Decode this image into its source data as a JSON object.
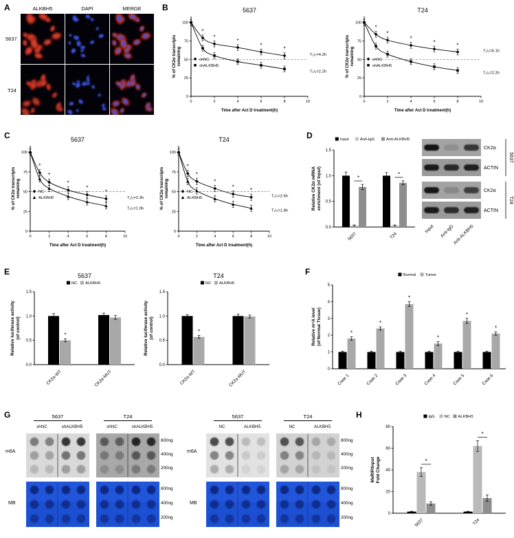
{
  "labels": {
    "A": "A",
    "B": "B",
    "C": "C",
    "D": "D",
    "E": "E",
    "F": "F",
    "G": "G",
    "H": "H"
  },
  "colors": {
    "black": "#000000",
    "gray_light": "#b9b9b9",
    "gray_mid": "#8e8e8e",
    "mb_blue": "#1c4fd2",
    "fluor_red": "#d23028",
    "fluor_blue": "#3d55e0"
  },
  "panelA": {
    "col_headers": [
      "ALKBH5",
      "DAPI",
      "MERGE"
    ],
    "row_labels": [
      "5637",
      "T24"
    ]
  },
  "panelD": {
    "lane_labels": [
      "Input",
      "Anti-IgG",
      "Anti-ALKBH5"
    ],
    "gel_targets": [
      "CK2α",
      "ACTIN",
      "CK2α",
      "ACTIN"
    ],
    "cell_labels": [
      "5637",
      "T24"
    ],
    "band_intensities": [
      [
        0.95,
        0.12,
        0.72
      ],
      [
        0.9,
        0.8,
        0.88
      ],
      [
        0.92,
        0.18,
        0.68
      ],
      [
        0.9,
        0.78,
        0.86
      ]
    ]
  },
  "panelG": {
    "left_headers": [
      "5637",
      "T24"
    ],
    "right_headers": [
      "5637",
      "T24"
    ],
    "left_col_labels": [
      "shNC",
      "shALKBH5",
      "shNC",
      "shALKBH5"
    ],
    "right_col_labels": [
      "NC",
      "ALKBH5",
      "NC",
      "ALKBH5"
    ],
    "row_labels": [
      "m6A",
      "MB"
    ],
    "amounts": [
      "800ng",
      "400ng",
      "200ng"
    ],
    "m6a_backgrounds": [
      "#d9d9d9",
      "#a8a8a8",
      "#e2e2e2",
      "#d2d2d2"
    ],
    "m6a_col_intensities": [
      [
        0.45,
        0.42,
        0.8,
        0.78
      ],
      [
        0.5,
        0.48,
        0.85,
        0.82
      ],
      [
        0.7,
        0.68,
        0.18,
        0.16
      ],
      [
        0.65,
        0.62,
        0.22,
        0.2
      ]
    ],
    "m6a_row_scale": [
      1,
      0.62,
      0.36
    ],
    "mb_row_opacity": [
      0.95,
      0.8,
      0.65
    ]
  },
  "chart_data": [
    {
      "id": "B1",
      "type": "decay",
      "title": "5637",
      "xlabel": "Time after Act D treatment(h)",
      "ylabel_lines": [
        "% of CK2α transcripts",
        "remaining"
      ],
      "xlim": [
        0,
        10
      ],
      "ylim": [
        0,
        108
      ],
      "xticks": [
        0,
        2,
        4,
        6,
        8,
        10
      ],
      "yticks": [
        0,
        25,
        50,
        75,
        100
      ],
      "dashed_y": 50,
      "x": [
        0,
        1,
        2,
        4,
        6,
        8
      ],
      "err": 4,
      "stars_x": [
        1,
        2,
        4,
        6,
        8
      ],
      "series": [
        {
          "name": "shNC",
          "marker": "diamond",
          "values": [
            100,
            79,
            71,
            66,
            60,
            55
          ],
          "halflife": "T₁/₂=4.2h"
        },
        {
          "name": "shALKBH5",
          "marker": "square",
          "values": [
            100,
            65,
            55,
            47,
            42,
            37
          ],
          "halflife": "T₁/₂=2.2h"
        }
      ]
    },
    {
      "id": "B2",
      "type": "decay",
      "title": "T24",
      "xlabel": "Time after Act D treatment(h)",
      "ylabel_lines": [
        "% of CK2α transcripts",
        "remaining"
      ],
      "xlim": [
        0,
        10
      ],
      "ylim": [
        0,
        108
      ],
      "xticks": [
        0,
        2,
        4,
        6,
        8,
        10
      ],
      "yticks": [
        0,
        25,
        50,
        75,
        100
      ],
      "dashed_y": 50,
      "x": [
        0,
        1,
        2,
        4,
        6,
        8
      ],
      "err": 4,
      "stars_x": [
        1,
        2,
        4,
        6,
        8
      ],
      "series": [
        {
          "name": "shNC",
          "marker": "diamond",
          "values": [
            100,
            84,
            76,
            69,
            64,
            60
          ],
          "halflife": "T₁/₂=6.1h"
        },
        {
          "name": "shALKBH5",
          "marker": "square",
          "values": [
            100,
            68,
            57,
            47,
            40,
            35
          ],
          "halflife": "T₁/₂=2.2h"
        }
      ]
    },
    {
      "id": "C1",
      "type": "decay",
      "title": "5637",
      "xlabel": "Time after Act D treatment(h)",
      "ylabel_lines": [
        "% of CK2α transcripts",
        "remaining"
      ],
      "xlim": [
        0,
        10
      ],
      "ylim": [
        0,
        108
      ],
      "xticks": [
        0,
        2,
        4,
        6,
        8,
        10
      ],
      "yticks": [
        0,
        25,
        50,
        75,
        100
      ],
      "dashed_y": 50,
      "x": [
        0,
        1,
        2,
        4,
        6,
        8
      ],
      "err": 4,
      "stars_x": [
        1,
        2,
        4,
        6,
        8
      ],
      "series": [
        {
          "name": "NC",
          "marker": "diamond",
          "values": [
            100,
            74,
            62,
            52,
            46,
            41
          ],
          "halflife": "T₁/₂=2.3h"
        },
        {
          "name": "ALKBH5",
          "marker": "triangle",
          "values": [
            100,
            66,
            54,
            44,
            37,
            32
          ],
          "halflife": "T₁/₂=1.9h"
        }
      ]
    },
    {
      "id": "C2",
      "type": "decay",
      "title": "T24",
      "xlabel": "Time after Act D treatment(h)",
      "ylabel_lines": [
        "% of CK2α transcripts",
        "remaining"
      ],
      "xlim": [
        0,
        10
      ],
      "ylim": [
        0,
        108
      ],
      "xticks": [
        0,
        2,
        4,
        6,
        8,
        10
      ],
      "yticks": [
        0,
        25,
        50,
        75,
        100
      ],
      "dashed_y": 50,
      "x": [
        0,
        1,
        2,
        4,
        6,
        8
      ],
      "err": 4,
      "stars_x": [
        1,
        2,
        4,
        6,
        8
      ],
      "series": [
        {
          "name": "NC",
          "marker": "diamond",
          "values": [
            100,
            73,
            63,
            54,
            47,
            43
          ],
          "halflife": "T₁/₂=2.6h"
        },
        {
          "name": "ALKBH5",
          "marker": "triangle",
          "values": [
            100,
            63,
            51,
            41,
            34,
            29
          ],
          "halflife": "T₁/₂=1.8h"
        }
      ]
    },
    {
      "id": "D",
      "type": "bar",
      "ylabel_lines": [
        "Relative CK2α mRNA",
        "enrichment (of Input)"
      ],
      "ylim": [
        0,
        1.5
      ],
      "yticks": [
        0,
        0.5,
        1,
        1.5
      ],
      "tickfmt": 1,
      "categories": [
        "5637",
        "T24"
      ],
      "rotate_xticks": true,
      "legend": "top",
      "series": [
        {
          "name": "Input",
          "color": "#000000",
          "values": [
            1.0,
            1.0
          ],
          "errs": [
            0.07,
            0.06
          ]
        },
        {
          "name": "Anti-IgG",
          "color": "#c2c2c2",
          "values": [
            0.03,
            0.03
          ],
          "errs": [
            0.01,
            0.01
          ]
        },
        {
          "name": "Anti-ALKBH5",
          "color": "#8e8e8e",
          "values": [
            0.78,
            0.86
          ],
          "errs": [
            0.05,
            0.04
          ]
        }
      ],
      "brackets": [
        {
          "cat": 0,
          "s1": 1,
          "s2": 2
        },
        {
          "cat": 1,
          "s1": 1,
          "s2": 2
        }
      ]
    },
    {
      "id": "E1",
      "type": "bar",
      "title": "5637",
      "ylabel_lines": [
        "Relative luciferase activity",
        "(of control)"
      ],
      "ylim": [
        0,
        1.5
      ],
      "yticks": [
        0,
        0.5,
        1,
        1.5
      ],
      "tickfmt": 1,
      "categories": [
        "CK2α-WT",
        "CK2α-MUT"
      ],
      "rotate_xticks": true,
      "legend": "top",
      "series": [
        {
          "name": "NC",
          "color": "#000000",
          "values": [
            1.0,
            1.02
          ],
          "errs": [
            0.05,
            0.04
          ]
        },
        {
          "name": "ALKBH5",
          "color": "#a8a8a8",
          "values": [
            0.5,
            0.97
          ],
          "errs": [
            0.03,
            0.04
          ]
        }
      ],
      "stars": [
        {
          "cat": 0,
          "series": 1
        }
      ]
    },
    {
      "id": "E2",
      "type": "bar",
      "title": "T24",
      "ylabel_lines": [
        "Relative luciferase activity",
        "(of control)"
      ],
      "ylim": [
        0,
        1.5
      ],
      "yticks": [
        0,
        0.5,
        1,
        1.5
      ],
      "tickfmt": 1,
      "categories": [
        "CK2α-WT",
        "CK2α-MUT"
      ],
      "rotate_xticks": true,
      "legend": "top",
      "series": [
        {
          "name": "NC",
          "color": "#000000",
          "values": [
            1.0,
            1.0
          ],
          "errs": [
            0.03,
            0.04
          ]
        },
        {
          "name": "ALKBH5",
          "color": "#a8a8a8",
          "values": [
            0.57,
            0.99
          ],
          "errs": [
            0.03,
            0.03
          ]
        }
      ],
      "stars": [
        {
          "cat": 0,
          "series": 1
        }
      ]
    },
    {
      "id": "F",
      "type": "bar",
      "ylabel_lines": [
        "Relative m⁶A level",
        "(of Normal Tissue)"
      ],
      "ylim": [
        0,
        5
      ],
      "yticks": [
        0,
        1,
        2,
        3,
        4,
        5
      ],
      "tickfmt": 0,
      "categories": [
        "Case 1",
        "Case 2",
        "Case 3",
        "Case 4",
        "Case 5",
        "Case 6"
      ],
      "rotate_xticks": true,
      "legend": "top",
      "series": [
        {
          "name": "Normal",
          "color": "#000000",
          "values": [
            1,
            1,
            1,
            1,
            1,
            1
          ],
          "errs": [
            0.05,
            0.05,
            0.05,
            0.05,
            0.05,
            0.05
          ]
        },
        {
          "name": "Tumor",
          "color": "#a8a8a8",
          "values": [
            1.8,
            2.4,
            3.85,
            1.5,
            2.85,
            2.1
          ],
          "errs": [
            0.1,
            0.1,
            0.15,
            0.12,
            0.15,
            0.1
          ]
        }
      ],
      "stars": [
        {
          "cat": 0,
          "series": 1
        },
        {
          "cat": 1,
          "series": 1
        },
        {
          "cat": 2,
          "series": 1
        },
        {
          "cat": 3,
          "series": 1
        },
        {
          "cat": 4,
          "series": 1
        },
        {
          "cat": 5,
          "series": 1
        }
      ]
    },
    {
      "id": "H",
      "type": "bar",
      "ylabel_lines": [
        "MeRIP/Input",
        "Fold Change"
      ],
      "ylim": [
        0,
        80
      ],
      "yticks": [
        0,
        20,
        40,
        60,
        80
      ],
      "tickfmt": 0,
      "categories": [
        "5637",
        "T24"
      ],
      "rotate_xticks": true,
      "legend": "top",
      "series": [
        {
          "name": "IgG",
          "color": "#000000",
          "values": [
            1.5,
            1.5
          ],
          "errs": [
            0.3,
            0.3
          ]
        },
        {
          "name": "NC",
          "color": "#b9b9b9",
          "values": [
            38,
            62
          ],
          "errs": [
            4,
            5
          ]
        },
        {
          "name": "ALKBH5",
          "color": "#8e8e8e",
          "values": [
            9,
            14
          ],
          "errs": [
            1.5,
            3
          ]
        }
      ],
      "brackets": [
        {
          "cat": 0,
          "s1": 1,
          "s2": 2
        },
        {
          "cat": 1,
          "s1": 1,
          "s2": 2
        }
      ]
    }
  ]
}
